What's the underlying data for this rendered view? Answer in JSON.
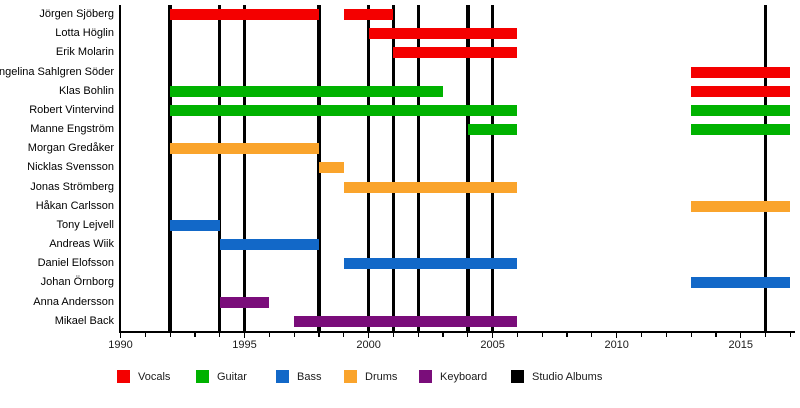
{
  "chart_data": {
    "type": "timeline",
    "x_axis": {
      "min": 1990,
      "max": 2017,
      "minor_tick_interval": 1,
      "labeled_ticks": [
        "1990",
        "1995",
        "2000",
        "2005",
        "2010",
        "2015"
      ],
      "labeled_tick_years": [
        1990,
        1995,
        2000,
        2005,
        2010,
        2015
      ]
    },
    "legend": [
      {
        "label": "Vocals",
        "color": "#f40000"
      },
      {
        "label": "Guitar",
        "color": "#00b200"
      },
      {
        "label": "Bass",
        "color": "#1268c8"
      },
      {
        "label": "Drums",
        "color": "#faa42c"
      },
      {
        "label": "Keyboard",
        "color": "#7a0d7a"
      },
      {
        "label": "Studio Albums",
        "color": "#000000"
      }
    ],
    "members": [
      {
        "name": "Jörgen Sjöberg",
        "segments": [
          {
            "role": "Vocals",
            "start": 1992,
            "end": 1998
          },
          {
            "role": "Vocals",
            "start": 1999,
            "end": 2001
          }
        ]
      },
      {
        "name": "Lotta Höglin",
        "segments": [
          {
            "role": "Vocals",
            "start": 2000,
            "end": 2006
          }
        ]
      },
      {
        "name": "Erik Molarin",
        "segments": [
          {
            "role": "Vocals",
            "start": 2001,
            "end": 2006
          }
        ]
      },
      {
        "name": "Angelina Sahlgren Söder",
        "segments": [
          {
            "role": "Vocals",
            "start": 2013,
            "end": 2017
          }
        ]
      },
      {
        "name": "Klas Bohlin",
        "segments": [
          {
            "role": "Guitar",
            "start": 1992,
            "end": 2003
          },
          {
            "role": "Vocals",
            "start": 2013,
            "end": 2017
          }
        ]
      },
      {
        "name": "Robert Vintervind",
        "segments": [
          {
            "role": "Guitar",
            "start": 1992,
            "end": 2006
          },
          {
            "role": "Guitar",
            "start": 2013,
            "end": 2017
          }
        ]
      },
      {
        "name": "Manne Engström",
        "segments": [
          {
            "role": "Guitar",
            "start": 2004,
            "end": 2006
          },
          {
            "role": "Guitar",
            "start": 2013,
            "end": 2017
          }
        ]
      },
      {
        "name": "Morgan Gredåker",
        "segments": [
          {
            "role": "Drums",
            "start": 1992,
            "end": 1998
          }
        ]
      },
      {
        "name": "Nicklas Svensson",
        "segments": [
          {
            "role": "Drums",
            "start": 1998,
            "end": 1999
          }
        ]
      },
      {
        "name": "Jonas Strömberg",
        "segments": [
          {
            "role": "Drums",
            "start": 1999,
            "end": 2006
          }
        ]
      },
      {
        "name": "Håkan Carlsson",
        "segments": [
          {
            "role": "Drums",
            "start": 2013,
            "end": 2017
          }
        ]
      },
      {
        "name": "Tony Lejvell",
        "segments": [
          {
            "role": "Bass",
            "start": 1992,
            "end": 1994
          }
        ]
      },
      {
        "name": "Andreas Wiik",
        "segments": [
          {
            "role": "Bass",
            "start": 1994,
            "end": 1998
          }
        ]
      },
      {
        "name": "Daniel Elofsson",
        "segments": [
          {
            "role": "Bass",
            "start": 1999,
            "end": 2006
          }
        ]
      },
      {
        "name": "Johan Örnborg",
        "segments": [
          {
            "role": "Bass",
            "start": 2013,
            "end": 2017
          }
        ]
      },
      {
        "name": "Anna Andersson",
        "segments": [
          {
            "role": "Keyboard",
            "start": 1994,
            "end": 1996
          }
        ]
      },
      {
        "name": "Mikael Back",
        "segments": [
          {
            "role": "Keyboard",
            "start": 1997,
            "end": 2006
          }
        ]
      }
    ],
    "studio_albums": [
      1992,
      1994,
      1995,
      1998,
      2000,
      2001,
      2002,
      2004,
      2005,
      2016
    ]
  }
}
